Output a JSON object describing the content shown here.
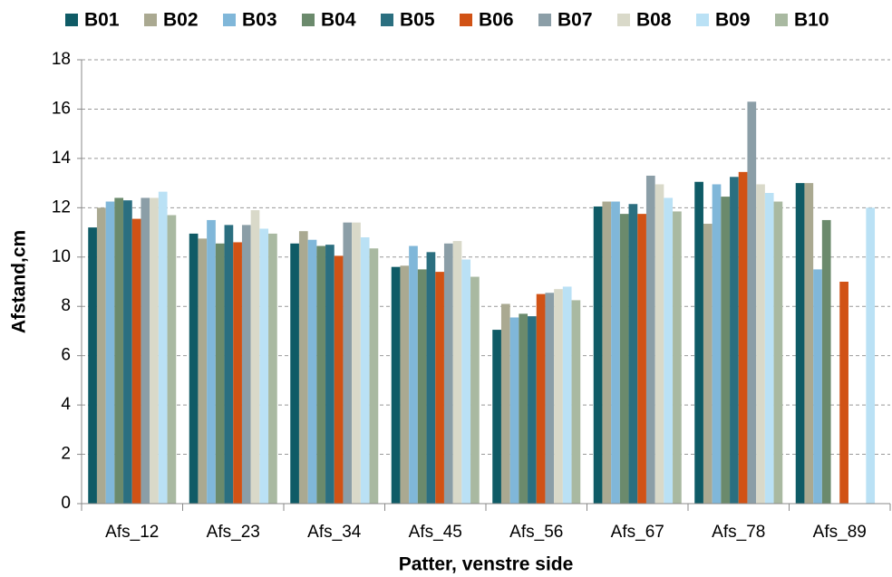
{
  "chart_data": {
    "type": "bar",
    "x_label": "Patter, venstre side",
    "y_label": "Afstand,cm",
    "categories": [
      "Afs_12",
      "Afs_23",
      "Afs_34",
      "Afs_45",
      "Afs_56",
      "Afs_67",
      "Afs_78",
      "Afs_89"
    ],
    "ylim": [
      0,
      18
    ],
    "yticks": [
      0,
      2,
      4,
      6,
      8,
      10,
      12,
      14,
      16,
      18
    ],
    "grid": true,
    "legend": "top",
    "series": [
      {
        "name": "B01",
        "color": "#0f5b66",
        "values": [
          11.2,
          10.95,
          10.55,
          9.6,
          7.05,
          12.05,
          13.05,
          13.0
        ]
      },
      {
        "name": "B02",
        "color": "#aaa991",
        "values": [
          12.0,
          10.75,
          11.05,
          9.65,
          8.1,
          12.25,
          11.35,
          13.0
        ]
      },
      {
        "name": "B03",
        "color": "#80b7d9",
        "values": [
          12.25,
          11.5,
          10.7,
          10.45,
          7.55,
          12.25,
          12.95,
          9.5
        ]
      },
      {
        "name": "B04",
        "color": "#6b8a6c",
        "values": [
          12.4,
          10.55,
          10.45,
          9.5,
          7.7,
          11.75,
          12.45,
          11.5
        ]
      },
      {
        "name": "B05",
        "color": "#2b6f80",
        "values": [
          12.3,
          11.3,
          10.5,
          10.2,
          7.6,
          12.15,
          13.25,
          null
        ]
      },
      {
        "name": "B06",
        "color": "#d15215",
        "values": [
          11.55,
          10.6,
          10.05,
          9.4,
          8.5,
          11.75,
          13.45,
          9.0
        ]
      },
      {
        "name": "B07",
        "color": "#8b9ea7",
        "values": [
          12.4,
          11.3,
          11.4,
          10.55,
          8.55,
          13.3,
          16.3,
          null
        ]
      },
      {
        "name": "B08",
        "color": "#d9d9c9",
        "values": [
          12.4,
          11.9,
          11.4,
          10.65,
          8.7,
          12.95,
          12.95,
          null
        ]
      },
      {
        "name": "B09",
        "color": "#bae1f5",
        "values": [
          12.65,
          11.15,
          10.8,
          9.9,
          8.8,
          12.4,
          12.6,
          12.0
        ]
      },
      {
        "name": "B10",
        "color": "#a9b9a1",
        "values": [
          11.7,
          10.95,
          10.35,
          9.2,
          8.25,
          11.85,
          12.25,
          null
        ]
      }
    ]
  }
}
